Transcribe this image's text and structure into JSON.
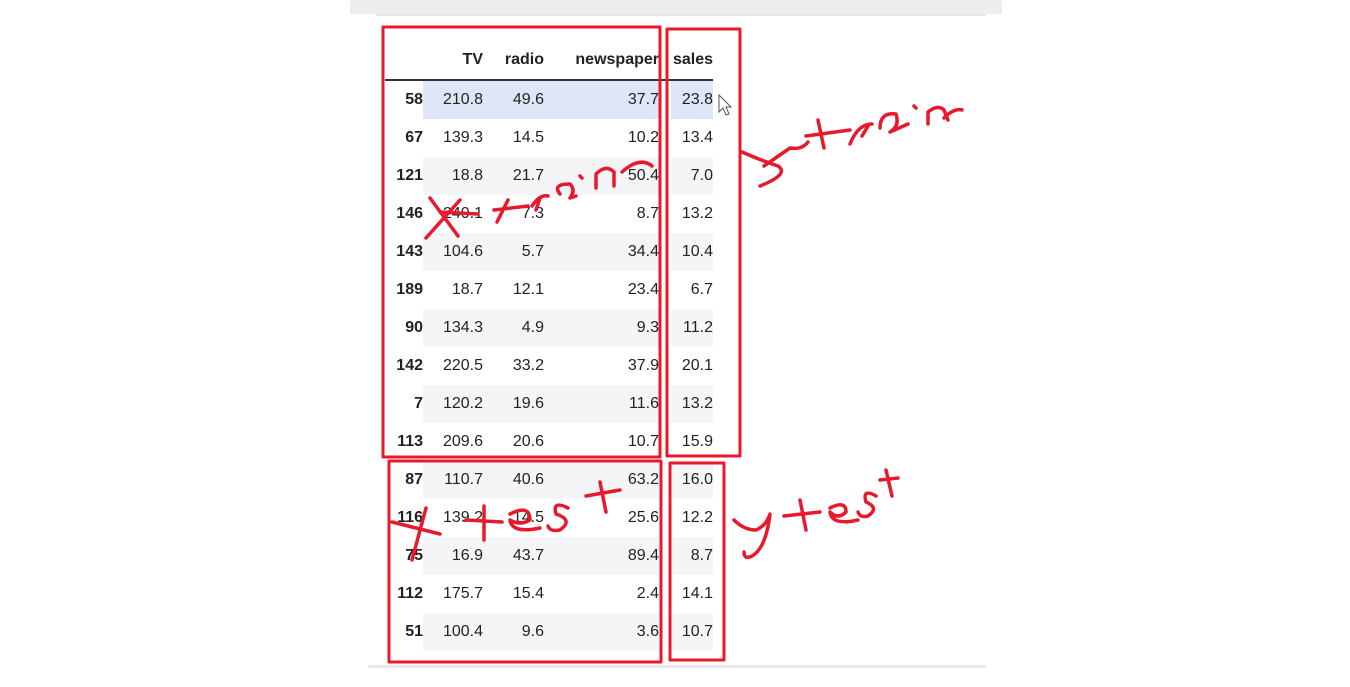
{
  "table": {
    "columns": [
      "TV",
      "radio",
      "newspaper",
      "sales"
    ],
    "rows": [
      {
        "index": "58",
        "tv": "210.8",
        "radio": "49.6",
        "newspaper": "37.7",
        "sales": "23.8"
      },
      {
        "index": "67",
        "tv": "139.3",
        "radio": "14.5",
        "newspaper": "10.2",
        "sales": "13.4"
      },
      {
        "index": "121",
        "tv": "18.8",
        "radio": "21.7",
        "newspaper": "50.4",
        "sales": "7.0"
      },
      {
        "index": "146",
        "tv": "240.1",
        "radio": "7.3",
        "newspaper": "8.7",
        "sales": "13.2"
      },
      {
        "index": "143",
        "tv": "104.6",
        "radio": "5.7",
        "newspaper": "34.4",
        "sales": "10.4"
      },
      {
        "index": "189",
        "tv": "18.7",
        "radio": "12.1",
        "newspaper": "23.4",
        "sales": "6.7"
      },
      {
        "index": "90",
        "tv": "134.3",
        "radio": "4.9",
        "newspaper": "9.3",
        "sales": "11.2"
      },
      {
        "index": "142",
        "tv": "220.5",
        "radio": "33.2",
        "newspaper": "37.9",
        "sales": "20.1"
      },
      {
        "index": "7",
        "tv": "120.2",
        "radio": "19.6",
        "newspaper": "11.6",
        "sales": "13.2"
      },
      {
        "index": "113",
        "tv": "209.6",
        "radio": "20.6",
        "newspaper": "10.7",
        "sales": "15.9"
      },
      {
        "index": "87",
        "tv": "110.7",
        "radio": "40.6",
        "newspaper": "63.2",
        "sales": "16.0"
      },
      {
        "index": "116",
        "tv": "139.2",
        "radio": "14.5",
        "newspaper": "25.6",
        "sales": "12.2"
      },
      {
        "index": "75",
        "tv": "16.9",
        "radio": "43.7",
        "newspaper": "89.4",
        "sales": "8.7"
      },
      {
        "index": "112",
        "tv": "175.7",
        "radio": "15.4",
        "newspaper": "2.4",
        "sales": "14.1"
      },
      {
        "index": "51",
        "tv": "100.4",
        "radio": "9.6",
        "newspaper": "3.6",
        "sales": "10.7"
      }
    ]
  },
  "annotations": {
    "x_train": "x-train",
    "y_train": "y-train",
    "x_test": "x-test",
    "y_test": "y-test",
    "color": "#e8192c"
  },
  "cursor": "pointer-arrow-icon"
}
